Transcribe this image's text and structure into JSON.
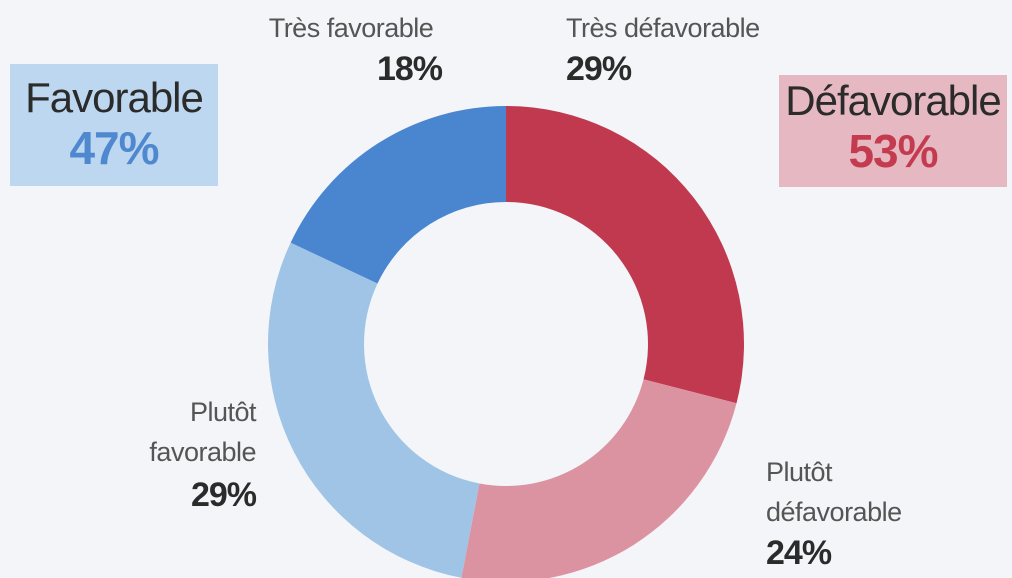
{
  "summary": {
    "favorable": {
      "label": "Favorable",
      "value": "47%",
      "color": "#4f88cf",
      "background": "#bcd7ef"
    },
    "defavorable": {
      "label": "Défavorable",
      "value": "53%",
      "color": "#c43b50",
      "background": "#e6b8c2"
    }
  },
  "labels": {
    "tres_defavorable": {
      "name": "Très défavorable",
      "value": "29%"
    },
    "plutot_defavorable": {
      "name_line1": "Plutôt",
      "name_line2": "défavorable",
      "value": "24%"
    },
    "plutot_favorable": {
      "name_line1": "Plutôt",
      "name_line2": "favorable",
      "value": "29%"
    },
    "tres_favorable": {
      "name": "Très favorable",
      "value": "18%"
    }
  },
  "chart_data": {
    "type": "pie",
    "donut": true,
    "categories": [
      "Très défavorable",
      "Plutôt défavorable",
      "Plutôt favorable",
      "Très favorable"
    ],
    "values": [
      29,
      24,
      29,
      18
    ],
    "colors": [
      "#c0394e",
      "#dc93a1",
      "#9fc4e6",
      "#4a86d0"
    ],
    "start": "top, clockwise",
    "groups": [
      {
        "name": "Favorable",
        "value": 47
      },
      {
        "name": "Défavorable",
        "value": 53
      }
    ]
  }
}
